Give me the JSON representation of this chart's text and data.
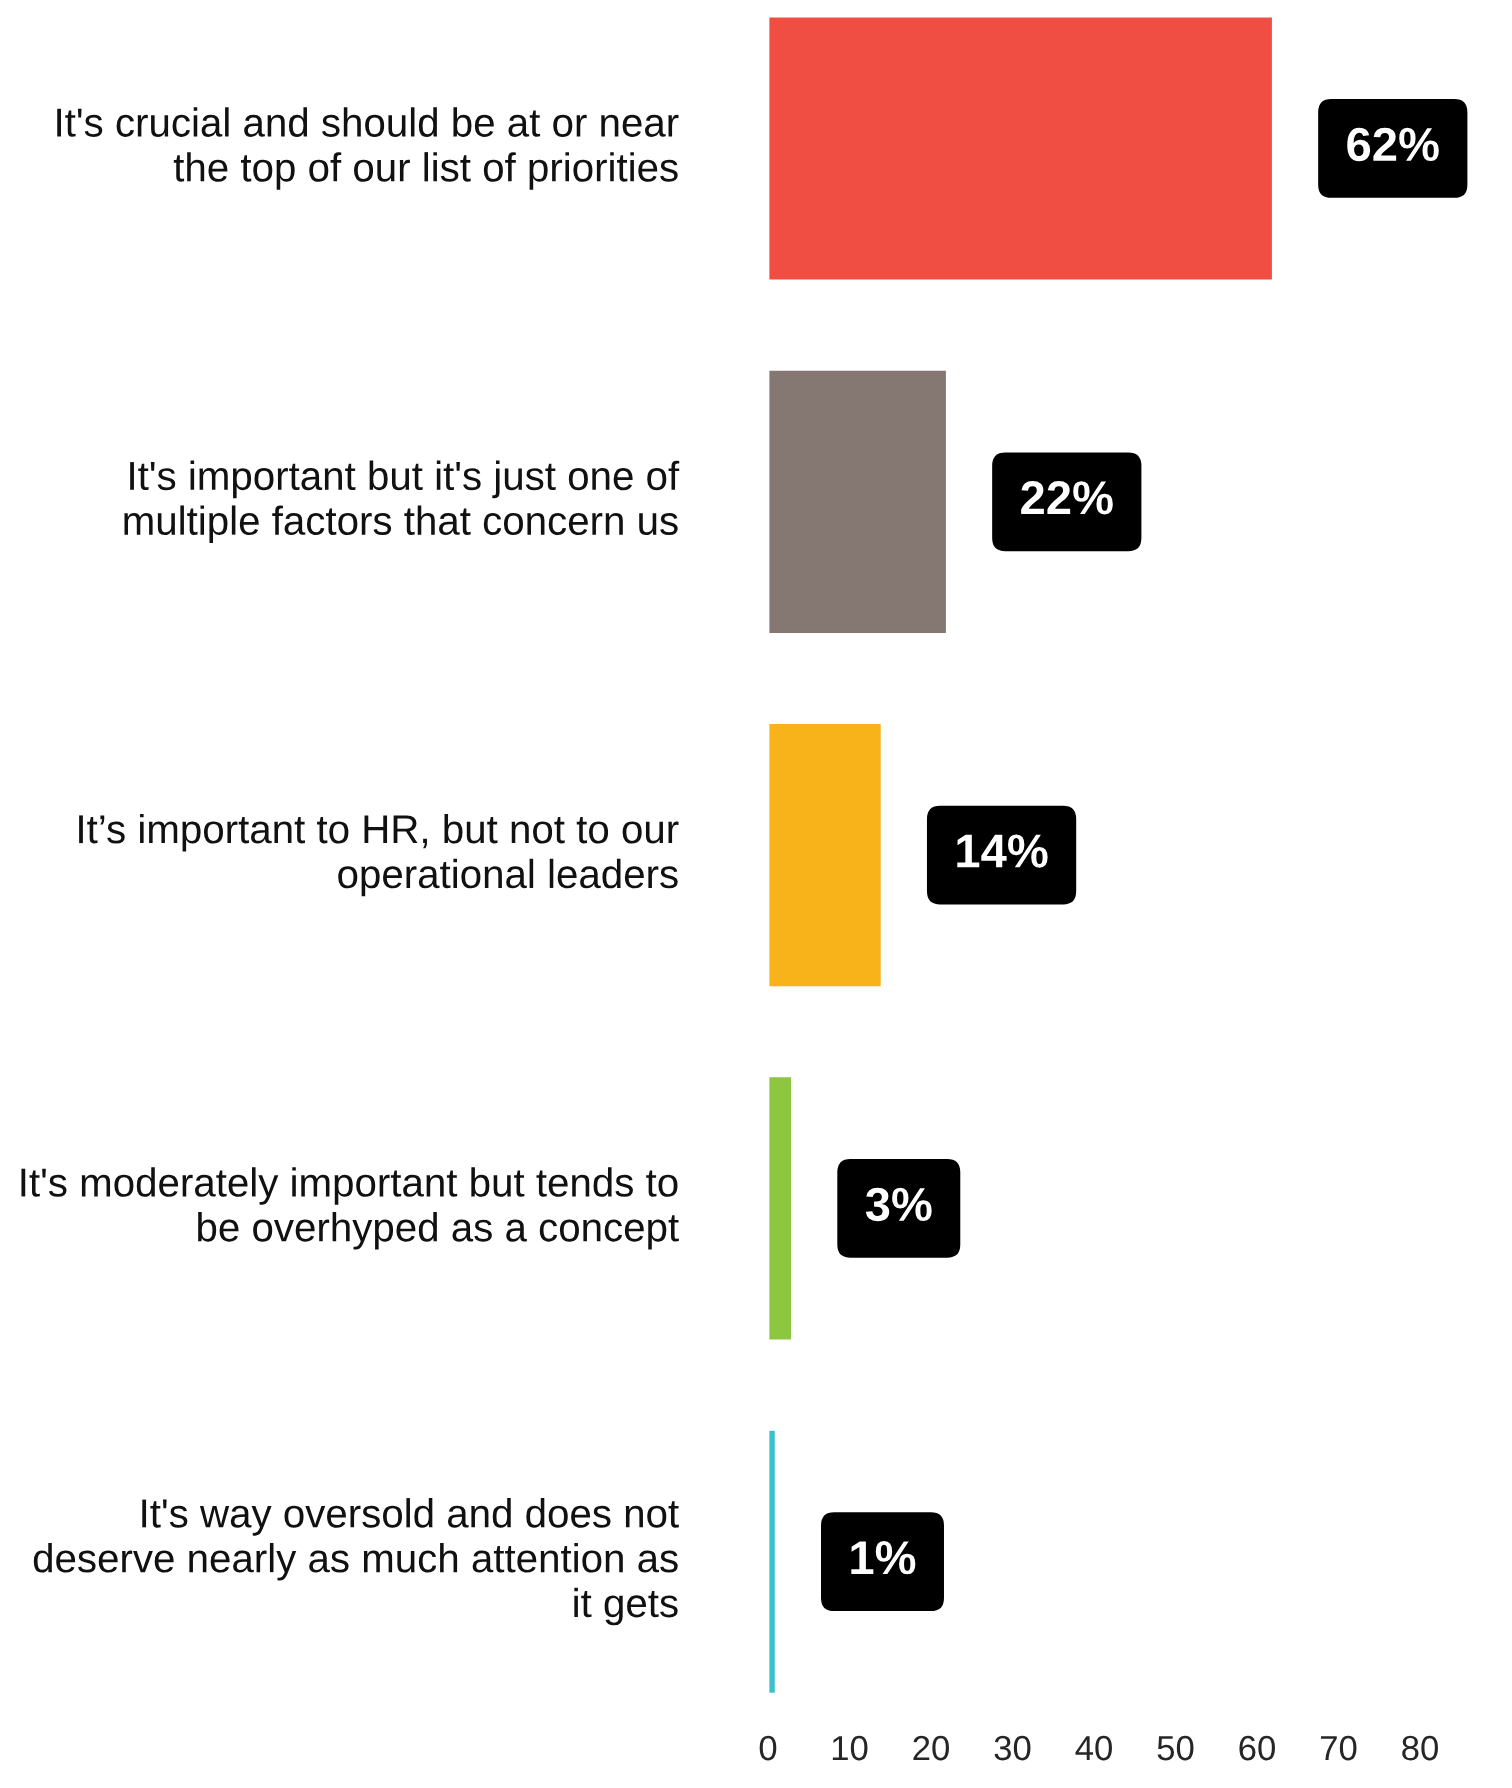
{
  "chart_data": {
    "type": "bar",
    "orientation": "horizontal",
    "categories": [
      "It's crucial and should be at or near the top of our list of priorities",
      "It's important but it's just one of multiple factors that concern us",
      "It’s important to HR, but not to our operational leaders",
      "It's moderately important but tends to be overhyped as a concept",
      "It's way oversold and does not deserve nearly as much attention as it gets"
    ],
    "values": [
      62,
      22,
      14,
      3,
      1
    ],
    "colors": [
      "#f04e43",
      "#857872",
      "#f9b31a",
      "#8dc63f",
      "#3bbfcf"
    ],
    "value_labels": [
      "62%",
      "22%",
      "14%",
      "3%",
      "1%"
    ],
    "xlim": [
      0,
      80
    ],
    "xticks": [
      0,
      10,
      20,
      30,
      40,
      50,
      60,
      70,
      80
    ],
    "grid": false,
    "legend": false
  }
}
